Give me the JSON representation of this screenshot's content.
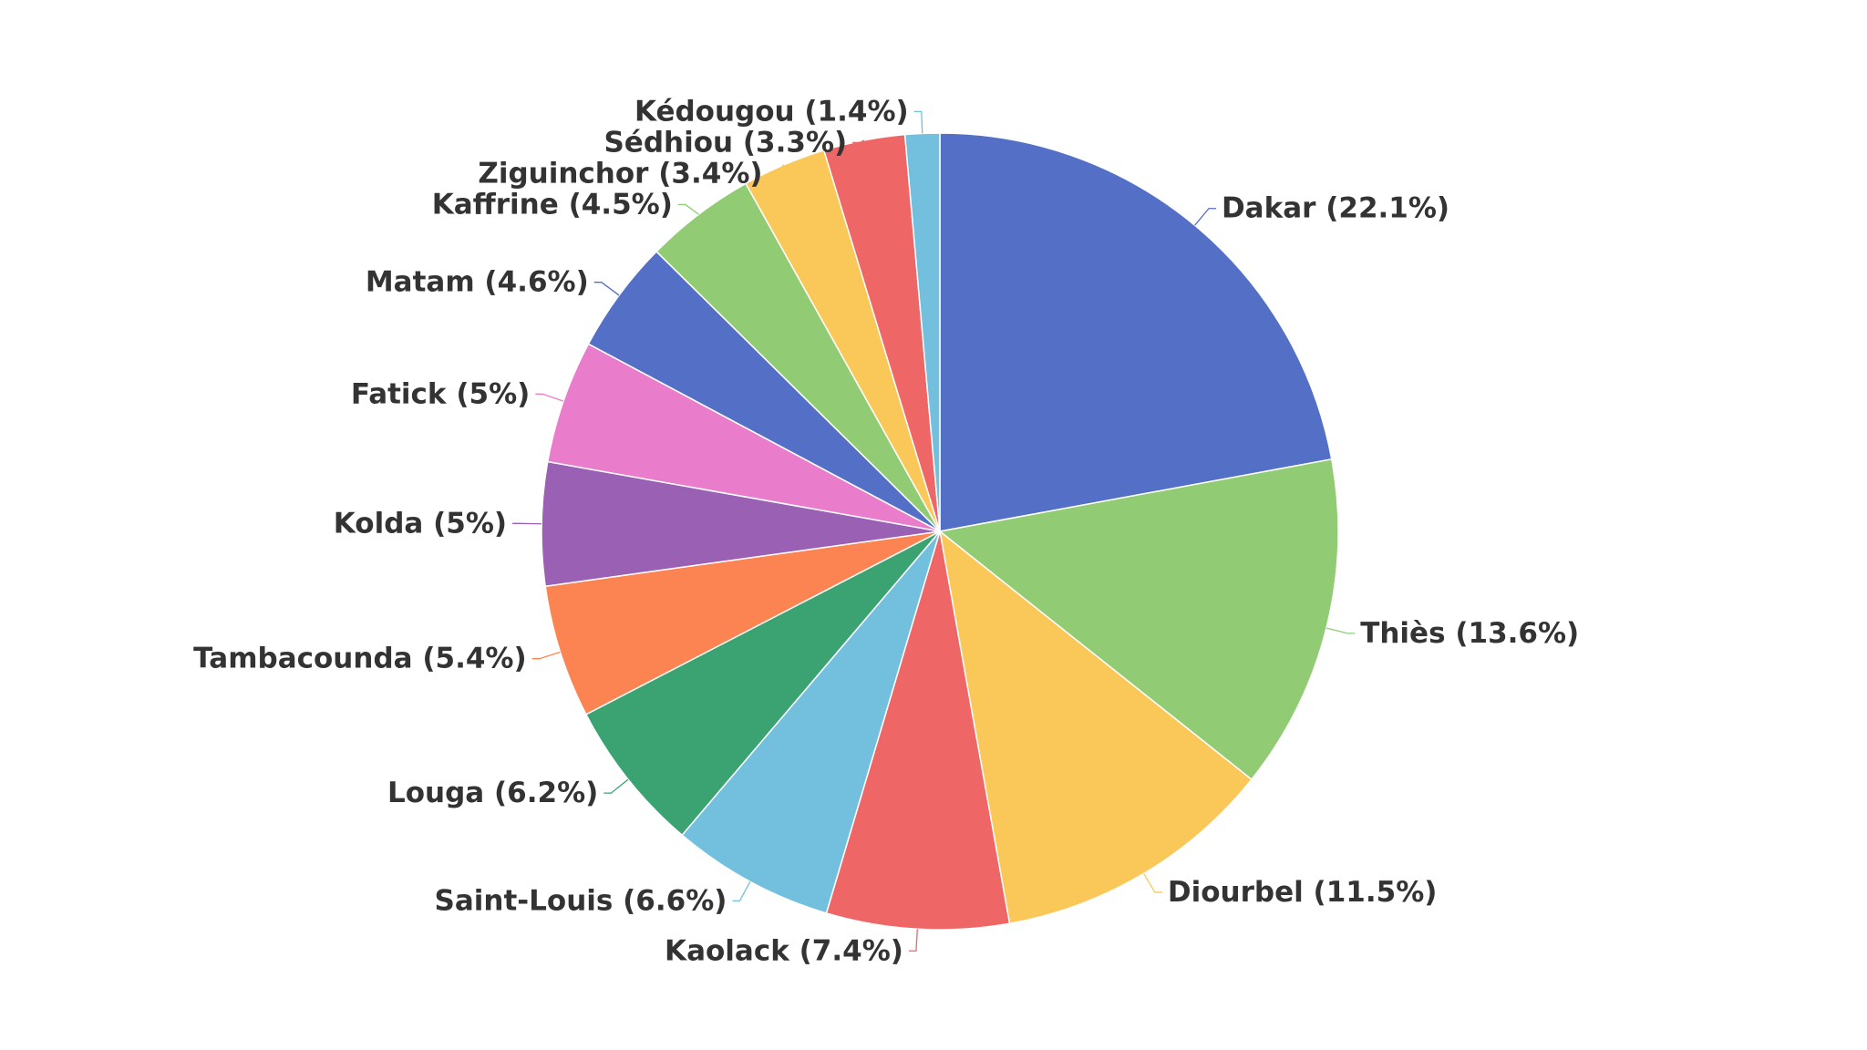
{
  "chart_data": {
    "type": "pie",
    "title": "",
    "start": "top",
    "direction": "clockwise",
    "legend": "none",
    "slices": [
      {
        "label": "Dakar (22.1%)",
        "value": 22.1,
        "color": "#5470c6"
      },
      {
        "label": "Thiès (13.6%)",
        "value": 13.6,
        "color": "#91cc75"
      },
      {
        "label": "Diourbel (11.5%)",
        "value": 11.5,
        "color": "#fac858"
      },
      {
        "label": "Kaolack (7.4%)",
        "value": 7.4,
        "color": "#ee6666"
      },
      {
        "label": "Saint-Louis (6.6%)",
        "value": 6.6,
        "color": "#73c0de"
      },
      {
        "label": "Louga (6.2%)",
        "value": 6.2,
        "color": "#3ba272"
      },
      {
        "label": "Tambacounda (5.4%)",
        "value": 5.4,
        "color": "#fc8452"
      },
      {
        "label": "Kolda (5%)",
        "value": 5.0,
        "color": "#9a60b4"
      },
      {
        "label": "Fatick (5%)",
        "value": 5.0,
        "color": "#ea7ccc"
      },
      {
        "label": "Matam (4.6%)",
        "value": 4.6,
        "color": "#5470c6"
      },
      {
        "label": "Kaffrine (4.5%)",
        "value": 4.5,
        "color": "#91cc75"
      },
      {
        "label": "Ziguinchor (3.4%)",
        "value": 3.4,
        "color": "#fac858"
      },
      {
        "label": "Sédhiou (3.3%)",
        "value": 3.3,
        "color": "#ee6666"
      },
      {
        "label": "Kédougou (1.4%)",
        "value": 1.4,
        "color": "#73c0de"
      }
    ]
  }
}
